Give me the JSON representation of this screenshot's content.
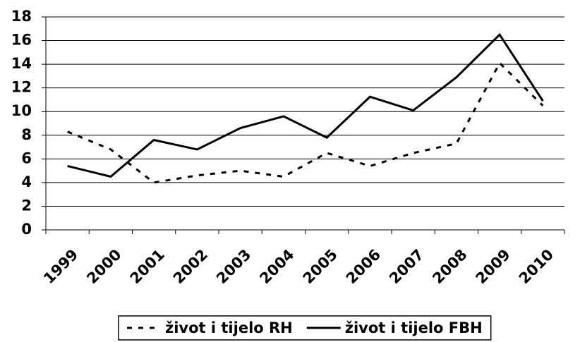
{
  "chart_data": {
    "type": "line",
    "categories": [
      "1999",
      "2000",
      "2001",
      "2002",
      "2003",
      "2004",
      "2005",
      "2006",
      "2007",
      "2008",
      "2009",
      "2010"
    ],
    "series": [
      {
        "name": "život i tijelo RH",
        "color": "#000000",
        "dash": "dotted",
        "values": [
          8.3,
          6.8,
          4.0,
          4.6,
          5.0,
          4.5,
          6.5,
          5.4,
          6.5,
          7.3,
          14.1,
          10.5
        ]
      },
      {
        "name": "život i tijelo FBH",
        "color": "#000000",
        "dash": "solid",
        "values": [
          5.4,
          4.5,
          7.6,
          6.8,
          8.6,
          9.6,
          7.8,
          11.25,
          10.1,
          12.9,
          16.5,
          10.9
        ]
      }
    ],
    "ylim": [
      0,
      18
    ],
    "yticks": [
      0,
      2,
      4,
      6,
      8,
      10,
      12,
      14,
      16,
      18
    ],
    "grid": true,
    "legend": "bottom"
  }
}
